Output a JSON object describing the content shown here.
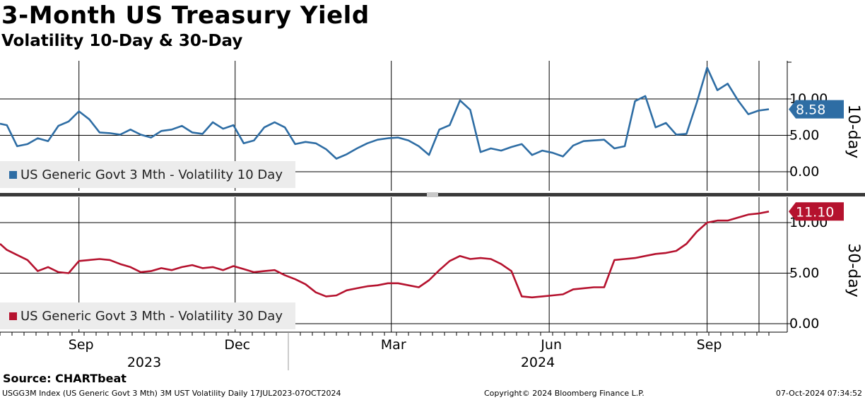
{
  "title": "3-Month US Treasury Yield",
  "subtitle": "Volatility 10-Day & 30-Day",
  "source": "Source: CHARTbeat",
  "footer": {
    "index_info": "USGG3M Index (US Generic Govt 3 Mth) 3M UST Volatility  Daily 17JUL2023-07OCT2024",
    "copyright": "Copyright© 2024 Bloomberg Finance L.P.",
    "timestamp": "07-Oct-2024 07:34:52"
  },
  "chart_data": [
    {
      "type": "line",
      "panel": "top",
      "side_label": "10-day",
      "legend": "US Generic Govt 3 Mth - Volatility 10 Day",
      "color": "#2e6da4",
      "last_value_label": "8.58",
      "ylim": [
        -0.6,
        15.0
      ],
      "yticks": [
        0,
        5,
        10
      ],
      "ytick_labels": [
        "0.00",
        "5.00",
        "10.00"
      ],
      "xlim": [
        "2023-07-17",
        "2024-10-07"
      ],
      "x": [
        "2023-07-17",
        "2023-07-21",
        "2023-07-27",
        "2023-08-02",
        "2023-08-08",
        "2023-08-14",
        "2023-08-20",
        "2023-08-26",
        "2023-09-01",
        "2023-09-07",
        "2023-09-13",
        "2023-09-19",
        "2023-09-25",
        "2023-10-01",
        "2023-10-07",
        "2023-10-13",
        "2023-10-19",
        "2023-10-25",
        "2023-10-31",
        "2023-11-06",
        "2023-11-12",
        "2023-11-18",
        "2023-11-24",
        "2023-11-30",
        "2023-12-06",
        "2023-12-12",
        "2023-12-18",
        "2023-12-24",
        "2023-12-30",
        "2024-01-05",
        "2024-01-11",
        "2024-01-17",
        "2024-01-23",
        "2024-01-29",
        "2024-02-04",
        "2024-02-10",
        "2024-02-16",
        "2024-02-22",
        "2024-02-28",
        "2024-03-05",
        "2024-03-11",
        "2024-03-17",
        "2024-03-23",
        "2024-03-29",
        "2024-04-04",
        "2024-04-10",
        "2024-04-16",
        "2024-04-22",
        "2024-04-28",
        "2024-05-04",
        "2024-05-10",
        "2024-05-16",
        "2024-05-22",
        "2024-05-28",
        "2024-06-03",
        "2024-06-09",
        "2024-06-15",
        "2024-06-21",
        "2024-06-27",
        "2024-07-03",
        "2024-07-09",
        "2024-07-15",
        "2024-07-21",
        "2024-07-27",
        "2024-08-02",
        "2024-08-08",
        "2024-08-14",
        "2024-08-20",
        "2024-08-26",
        "2024-09-01",
        "2024-09-07",
        "2024-09-13",
        "2024-09-19",
        "2024-09-25",
        "2024-10-01",
        "2024-10-07"
      ],
      "values": [
        6.6,
        6.4,
        3.5,
        3.8,
        4.6,
        4.2,
        6.3,
        6.9,
        8.3,
        7.2,
        5.4,
        5.3,
        5.1,
        5.8,
        5.1,
        4.7,
        5.6,
        5.8,
        6.3,
        5.4,
        5.2,
        6.8,
        5.9,
        6.4,
        3.9,
        4.3,
        6.1,
        6.8,
        6.1,
        3.8,
        4.1,
        3.9,
        3.1,
        1.8,
        2.4,
        3.2,
        3.9,
        4.4,
        4.6,
        4.7,
        4.3,
        3.5,
        2.3,
        5.8,
        6.4,
        9.8,
        8.5,
        2.7,
        3.2,
        2.9,
        3.4,
        3.8,
        2.3,
        2.9,
        2.6,
        2.1,
        3.6,
        4.2,
        4.3,
        4.4,
        3.2,
        3.5,
        9.7,
        10.4,
        6.1,
        6.7,
        5.1,
        5.2,
        9.5,
        14.3,
        11.2,
        12.1,
        9.8,
        7.9,
        8.4,
        8.58
      ]
    },
    {
      "type": "line",
      "panel": "bottom",
      "side_label": "30-day",
      "legend": "US Generic Govt 3 Mth - Volatility 30 Day",
      "color": "#b5122e",
      "last_value_label": "11.10",
      "ylim": [
        -0.8,
        12.0
      ],
      "yticks": [
        0,
        5,
        10
      ],
      "ytick_labels": [
        "0.00",
        "5.00",
        "10.00"
      ],
      "xlim": [
        "2023-07-17",
        "2024-10-07"
      ],
      "x": [
        "2023-07-17",
        "2023-07-21",
        "2023-07-27",
        "2023-08-02",
        "2023-08-08",
        "2023-08-14",
        "2023-08-20",
        "2023-08-26",
        "2023-09-01",
        "2023-09-07",
        "2023-09-13",
        "2023-09-19",
        "2023-09-25",
        "2023-10-01",
        "2023-10-07",
        "2023-10-13",
        "2023-10-19",
        "2023-10-25",
        "2023-10-31",
        "2023-11-06",
        "2023-11-12",
        "2023-11-18",
        "2023-11-24",
        "2023-11-30",
        "2023-12-06",
        "2023-12-12",
        "2023-12-18",
        "2023-12-24",
        "2023-12-30",
        "2024-01-05",
        "2024-01-11",
        "2024-01-17",
        "2024-01-23",
        "2024-01-29",
        "2024-02-04",
        "2024-02-10",
        "2024-02-16",
        "2024-02-22",
        "2024-02-28",
        "2024-03-05",
        "2024-03-11",
        "2024-03-17",
        "2024-03-23",
        "2024-03-29",
        "2024-04-04",
        "2024-04-10",
        "2024-04-16",
        "2024-04-22",
        "2024-04-28",
        "2024-05-04",
        "2024-05-10",
        "2024-05-16",
        "2024-05-22",
        "2024-05-28",
        "2024-06-03",
        "2024-06-09",
        "2024-06-15",
        "2024-06-21",
        "2024-06-27",
        "2024-07-03",
        "2024-07-09",
        "2024-07-15",
        "2024-07-21",
        "2024-07-27",
        "2024-08-02",
        "2024-08-08",
        "2024-08-14",
        "2024-08-20",
        "2024-08-26",
        "2024-09-01",
        "2024-09-07",
        "2024-09-13",
        "2024-09-19",
        "2024-09-25",
        "2024-10-01",
        "2024-10-07"
      ],
      "values": [
        7.9,
        7.3,
        6.8,
        6.3,
        5.2,
        5.6,
        5.1,
        5.0,
        6.2,
        6.3,
        6.4,
        6.3,
        5.9,
        5.6,
        5.1,
        5.2,
        5.5,
        5.3,
        5.6,
        5.8,
        5.5,
        5.6,
        5.3,
        5.7,
        5.4,
        5.1,
        5.2,
        5.3,
        4.8,
        4.4,
        3.9,
        3.1,
        2.7,
        2.8,
        3.3,
        3.5,
        3.7,
        3.8,
        4.0,
        4.0,
        3.8,
        3.6,
        4.3,
        5.3,
        6.2,
        6.7,
        6.4,
        6.5,
        6.4,
        5.9,
        5.2,
        2.7,
        2.6,
        2.7,
        2.8,
        2.9,
        3.4,
        3.5,
        3.6,
        3.6,
        6.3,
        6.4,
        6.5,
        6.7,
        6.9,
        7.0,
        7.2,
        7.9,
        9.1,
        10.0,
        10.2,
        10.2,
        10.5,
        10.8,
        10.9,
        11.1
      ]
    }
  ],
  "x_axis": {
    "month_labels": [
      {
        "date": "2023-09-01",
        "label": "Sep"
      },
      {
        "date": "2023-12-01",
        "label": "Dec"
      },
      {
        "date": "2024-03-01",
        "label": "Mar"
      },
      {
        "date": "2024-06-01",
        "label": "Jun"
      },
      {
        "date": "2024-09-01",
        "label": "Sep"
      }
    ],
    "year_labels": [
      {
        "label": "2023"
      },
      {
        "label": "2024"
      }
    ],
    "year_boundary": "2024-01-01"
  }
}
